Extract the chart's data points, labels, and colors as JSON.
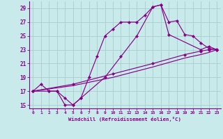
{
  "xlabel": "Windchill (Refroidissement éolien,°C)",
  "bg_color": "#c8eaea",
  "grid_color": "#aacccc",
  "line_color": "#880088",
  "xlim": [
    -0.5,
    23.5
  ],
  "ylim": [
    14.5,
    30.0
  ],
  "xticks": [
    0,
    1,
    2,
    3,
    4,
    5,
    6,
    7,
    8,
    9,
    10,
    11,
    12,
    13,
    14,
    15,
    16,
    17,
    18,
    19,
    20,
    21,
    22,
    23
  ],
  "yticks": [
    15,
    17,
    19,
    21,
    23,
    25,
    27,
    29
  ],
  "line1_x": [
    0,
    1,
    2,
    3,
    4,
    5,
    6,
    7,
    8,
    9,
    10,
    11,
    12,
    13,
    14,
    15,
    16,
    17,
    18,
    19,
    20,
    21,
    22,
    23
  ],
  "line1_y": [
    17,
    18,
    17,
    17,
    16,
    15,
    16,
    19,
    22,
    25,
    26,
    27,
    27,
    27,
    28,
    29.2,
    29.5,
    27,
    27.2,
    25.2,
    25,
    24,
    23.2,
    23
  ],
  "line2_x": [
    0,
    2,
    3,
    4,
    5,
    6,
    9,
    11,
    13,
    15,
    16,
    17,
    21,
    22,
    23
  ],
  "line2_y": [
    17,
    17,
    17,
    15,
    15,
    16,
    19,
    22,
    25,
    29.2,
    29.5,
    25.2,
    23,
    23.5,
    23
  ],
  "line3_x": [
    0,
    5,
    10,
    15,
    19,
    21,
    22,
    23
  ],
  "line3_y": [
    17,
    18,
    19.5,
    21,
    22.3,
    22.8,
    23.0,
    23.1
  ],
  "line4_x": [
    0,
    5,
    10,
    15,
    19,
    21,
    22,
    23
  ],
  "line4_y": [
    17,
    17.8,
    19.0,
    20.5,
    21.8,
    22.3,
    22.6,
    23.0
  ]
}
